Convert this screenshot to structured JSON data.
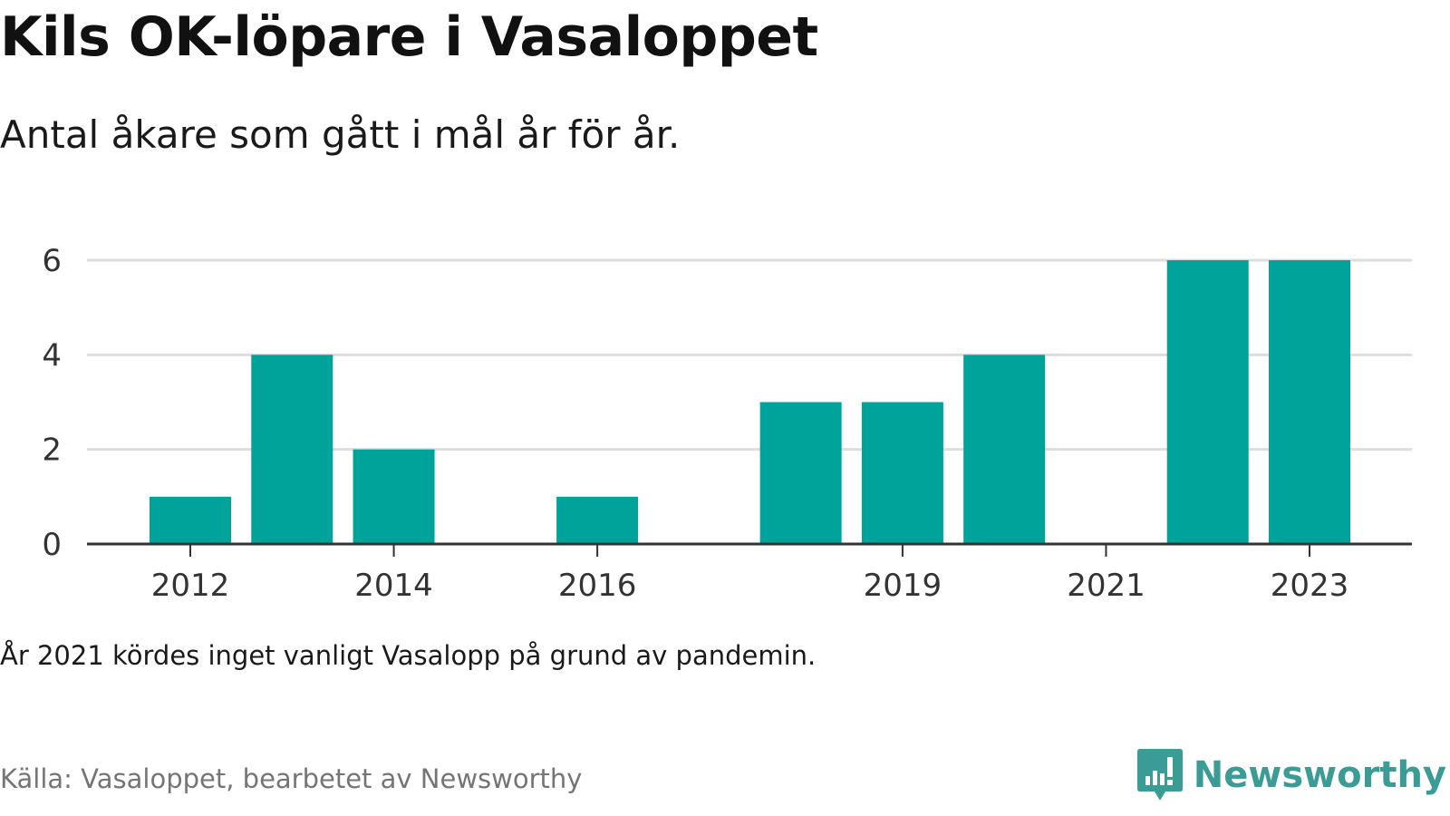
{
  "chart_data": {
    "type": "bar",
    "title": "Kils OK-löpare i Vasaloppet",
    "subtitle": "Antal åkare som gått i mål år för år.",
    "categories": [
      "2012",
      "2013",
      "2014",
      "2015",
      "2016",
      "2017",
      "2018",
      "2019",
      "2020",
      "2021",
      "2022",
      "2023"
    ],
    "values": [
      1,
      4,
      2,
      null,
      1,
      null,
      3,
      3,
      4,
      null,
      6,
      6
    ],
    "x_tick_labels": [
      "2012",
      "2014",
      "2016",
      "2019",
      "2021",
      "2023"
    ],
    "y_ticks": [
      0,
      2,
      4,
      6
    ],
    "ylim": [
      0,
      6
    ],
    "xlabel": "",
    "ylabel": "",
    "grid": true,
    "bar_color": "#00a39a",
    "annotation": "År 2021 kördes inget vanligt Vasalopp på grund av pandemin."
  },
  "footer": {
    "source": "Källa: Vasaloppet, bearbetet av Newsworthy",
    "brand": "Newsworthy",
    "brand_color": "#3a9c94",
    "logo_icon": "newsworthy-logo-icon"
  }
}
